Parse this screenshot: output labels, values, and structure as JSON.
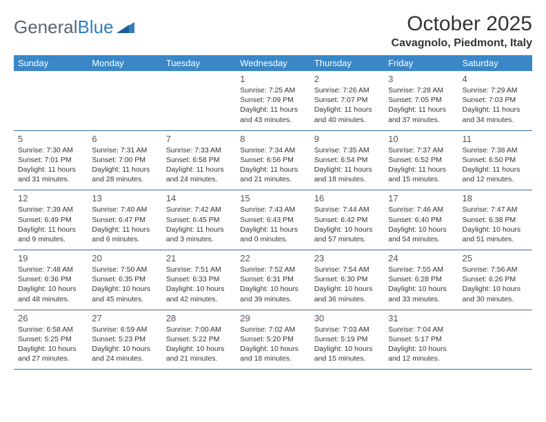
{
  "logo": {
    "text1": "General",
    "text2": "Blue"
  },
  "title": "October 2025",
  "location": "Cavagnolo, Piedmont, Italy",
  "colors": {
    "header_bg": "#3a87c8",
    "header_text": "#ffffff",
    "cell_border": "#3a6a9a",
    "logo_gray": "#5a6570",
    "logo_blue": "#2f7fc1",
    "text": "#333333",
    "background": "#ffffff"
  },
  "typography": {
    "title_fontsize": 30,
    "location_fontsize": 16,
    "dayhead_fontsize": 13,
    "daynum_fontsize": 13,
    "info_fontsize": 10.5
  },
  "day_headers": [
    "Sunday",
    "Monday",
    "Tuesday",
    "Wednesday",
    "Thursday",
    "Friday",
    "Saturday"
  ],
  "weeks": [
    [
      null,
      null,
      null,
      {
        "n": "1",
        "sr": "7:25 AM",
        "ss": "7:09 PM",
        "dl": "11 hours and 43 minutes."
      },
      {
        "n": "2",
        "sr": "7:26 AM",
        "ss": "7:07 PM",
        "dl": "11 hours and 40 minutes."
      },
      {
        "n": "3",
        "sr": "7:28 AM",
        "ss": "7:05 PM",
        "dl": "11 hours and 37 minutes."
      },
      {
        "n": "4",
        "sr": "7:29 AM",
        "ss": "7:03 PM",
        "dl": "11 hours and 34 minutes."
      }
    ],
    [
      {
        "n": "5",
        "sr": "7:30 AM",
        "ss": "7:01 PM",
        "dl": "11 hours and 31 minutes."
      },
      {
        "n": "6",
        "sr": "7:31 AM",
        "ss": "7:00 PM",
        "dl": "11 hours and 28 minutes."
      },
      {
        "n": "7",
        "sr": "7:33 AM",
        "ss": "6:58 PM",
        "dl": "11 hours and 24 minutes."
      },
      {
        "n": "8",
        "sr": "7:34 AM",
        "ss": "6:56 PM",
        "dl": "11 hours and 21 minutes."
      },
      {
        "n": "9",
        "sr": "7:35 AM",
        "ss": "6:54 PM",
        "dl": "11 hours and 18 minutes."
      },
      {
        "n": "10",
        "sr": "7:37 AM",
        "ss": "6:52 PM",
        "dl": "11 hours and 15 minutes."
      },
      {
        "n": "11",
        "sr": "7:38 AM",
        "ss": "6:50 PM",
        "dl": "11 hours and 12 minutes."
      }
    ],
    [
      {
        "n": "12",
        "sr": "7:39 AM",
        "ss": "6:49 PM",
        "dl": "11 hours and 9 minutes."
      },
      {
        "n": "13",
        "sr": "7:40 AM",
        "ss": "6:47 PM",
        "dl": "11 hours and 6 minutes."
      },
      {
        "n": "14",
        "sr": "7:42 AM",
        "ss": "6:45 PM",
        "dl": "11 hours and 3 minutes."
      },
      {
        "n": "15",
        "sr": "7:43 AM",
        "ss": "6:43 PM",
        "dl": "11 hours and 0 minutes."
      },
      {
        "n": "16",
        "sr": "7:44 AM",
        "ss": "6:42 PM",
        "dl": "10 hours and 57 minutes."
      },
      {
        "n": "17",
        "sr": "7:46 AM",
        "ss": "6:40 PM",
        "dl": "10 hours and 54 minutes."
      },
      {
        "n": "18",
        "sr": "7:47 AM",
        "ss": "6:38 PM",
        "dl": "10 hours and 51 minutes."
      }
    ],
    [
      {
        "n": "19",
        "sr": "7:48 AM",
        "ss": "6:36 PM",
        "dl": "10 hours and 48 minutes."
      },
      {
        "n": "20",
        "sr": "7:50 AM",
        "ss": "6:35 PM",
        "dl": "10 hours and 45 minutes."
      },
      {
        "n": "21",
        "sr": "7:51 AM",
        "ss": "6:33 PM",
        "dl": "10 hours and 42 minutes."
      },
      {
        "n": "22",
        "sr": "7:52 AM",
        "ss": "6:31 PM",
        "dl": "10 hours and 39 minutes."
      },
      {
        "n": "23",
        "sr": "7:54 AM",
        "ss": "6:30 PM",
        "dl": "10 hours and 36 minutes."
      },
      {
        "n": "24",
        "sr": "7:55 AM",
        "ss": "6:28 PM",
        "dl": "10 hours and 33 minutes."
      },
      {
        "n": "25",
        "sr": "7:56 AM",
        "ss": "6:26 PM",
        "dl": "10 hours and 30 minutes."
      }
    ],
    [
      {
        "n": "26",
        "sr": "6:58 AM",
        "ss": "5:25 PM",
        "dl": "10 hours and 27 minutes."
      },
      {
        "n": "27",
        "sr": "6:59 AM",
        "ss": "5:23 PM",
        "dl": "10 hours and 24 minutes."
      },
      {
        "n": "28",
        "sr": "7:00 AM",
        "ss": "5:22 PM",
        "dl": "10 hours and 21 minutes."
      },
      {
        "n": "29",
        "sr": "7:02 AM",
        "ss": "5:20 PM",
        "dl": "10 hours and 18 minutes."
      },
      {
        "n": "30",
        "sr": "7:03 AM",
        "ss": "5:19 PM",
        "dl": "10 hours and 15 minutes."
      },
      {
        "n": "31",
        "sr": "7:04 AM",
        "ss": "5:17 PM",
        "dl": "10 hours and 12 minutes."
      },
      null
    ]
  ],
  "labels": {
    "sunrise": "Sunrise:",
    "sunset": "Sunset:",
    "daylight": "Daylight:"
  }
}
